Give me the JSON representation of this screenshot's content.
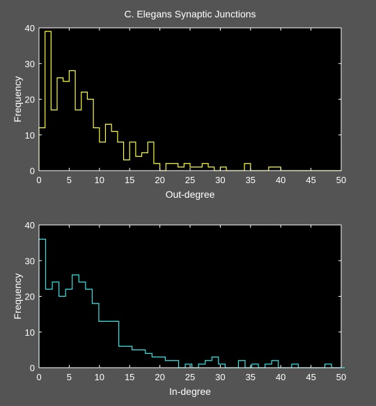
{
  "figure": {
    "title": "C. Elegans Synaptic Junctions",
    "background": "#545454",
    "axes_background": "#000000",
    "axes_color": "#ffffff"
  },
  "chart_data": [
    {
      "type": "histogram",
      "title": "C. Elegans Synaptic Junctions",
      "xlabel": "Out-degree",
      "ylabel": "Frequency",
      "xlim": [
        0,
        50
      ],
      "ylim": [
        0,
        40
      ],
      "xticks": [
        0,
        5,
        10,
        15,
        20,
        25,
        30,
        35,
        40,
        45,
        50
      ],
      "yticks": [
        0,
        10,
        20,
        30,
        40
      ],
      "grid": false,
      "color": "#ffff33",
      "series": [
        {
          "bin_start": 0,
          "bin_width": 1,
          "frequencies": [
            12,
            39,
            17,
            26,
            25,
            28,
            17,
            22,
            20,
            12,
            8,
            13,
            11,
            8,
            3,
            8,
            4,
            5,
            8,
            2,
            0,
            2,
            2,
            1,
            2,
            1,
            1,
            2,
            1,
            0,
            1,
            0,
            0,
            0,
            2,
            0,
            0,
            0,
            1,
            1,
            0,
            0,
            0,
            0,
            0,
            0,
            0,
            0,
            0,
            0
          ]
        }
      ]
    },
    {
      "type": "histogram",
      "title": "",
      "xlabel": "In-degree",
      "ylabel": "Frequency",
      "xlim": [
        0,
        50
      ],
      "ylim": [
        0,
        40
      ],
      "xticks": [
        0,
        5,
        10,
        15,
        20,
        25,
        30,
        35,
        40,
        45,
        50
      ],
      "yticks": [
        0,
        10,
        20,
        30,
        40
      ],
      "grid": false,
      "color": "#33e6e6",
      "series": [
        {
          "bin_start": 0,
          "bin_width": 1.1,
          "frequencies": [
            36,
            22,
            24,
            20,
            22,
            26,
            24,
            22,
            18,
            13,
            13,
            13,
            6,
            6,
            5,
            5,
            4,
            3,
            3,
            2,
            2,
            0,
            1,
            0,
            1,
            2,
            3,
            1,
            0,
            0,
            2,
            0,
            1,
            0,
            1,
            2,
            0,
            0,
            1,
            0,
            0,
            0,
            0,
            1,
            0,
            0
          ]
        }
      ]
    }
  ]
}
